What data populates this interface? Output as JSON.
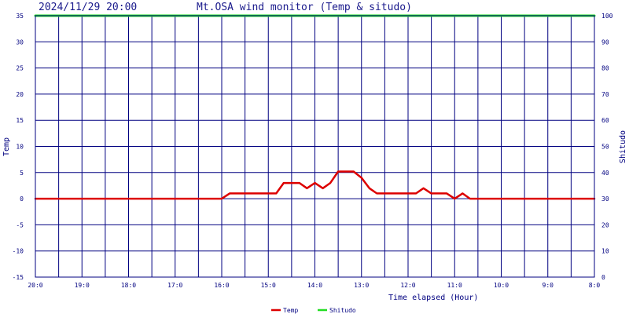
{
  "header": {
    "datetime": "2024/11/29 20:00",
    "title": "Mt.OSA wind monitor (Temp & situdo)"
  },
  "chart_data": {
    "type": "line",
    "title": "Mt.OSA wind monitor (Temp & situdo)",
    "xlabel": "Time elapsed (Hour)",
    "ylabel": "Temp",
    "y2label": "Shitudo",
    "xlim": [
      0,
      12
    ],
    "ylim": [
      -15,
      35
    ],
    "y2lim": [
      0,
      100
    ],
    "x_ticks": [
      {
        "x": 0,
        "label": "20:0"
      },
      {
        "x": 1,
        "label": "19:0"
      },
      {
        "x": 2,
        "label": "18:0"
      },
      {
        "x": 3,
        "label": "17:0"
      },
      {
        "x": 4,
        "label": "16:0"
      },
      {
        "x": 5,
        "label": "15:0"
      },
      {
        "x": 6,
        "label": "14:0"
      },
      {
        "x": 7,
        "label": "13:0"
      },
      {
        "x": 8,
        "label": "12:0"
      },
      {
        "x": 9,
        "label": "11:0"
      },
      {
        "x": 10,
        "label": "10:0"
      },
      {
        "x": 11,
        "label": "9:0"
      },
      {
        "x": 12,
        "label": "8:0"
      }
    ],
    "y_ticks": [
      "35",
      "30",
      "25",
      "20",
      "15",
      "10",
      "5",
      "0",
      "-5",
      "-10",
      "-15"
    ],
    "y2_ticks": [
      "100",
      "90",
      "80",
      "70",
      "60",
      "50",
      "40",
      "30",
      "20",
      "10",
      "0"
    ],
    "grid": true,
    "legend_position": "bottom-center",
    "series": [
      {
        "name": "Temp",
        "axis": "left",
        "color": "#dd0000",
        "points": [
          [
            0,
            0
          ],
          [
            4,
            0
          ],
          [
            4.17,
            1
          ],
          [
            5.17,
            1
          ],
          [
            5.33,
            3
          ],
          [
            5.67,
            3
          ],
          [
            5.83,
            2
          ],
          [
            6.0,
            3
          ],
          [
            6.17,
            2
          ],
          [
            6.33,
            3
          ],
          [
            6.5,
            5.2
          ],
          [
            6.83,
            5.2
          ],
          [
            7.0,
            4
          ],
          [
            7.17,
            2
          ],
          [
            7.33,
            1
          ],
          [
            8.17,
            1
          ],
          [
            8.33,
            2
          ],
          [
            8.5,
            1
          ],
          [
            8.83,
            1
          ],
          [
            9.0,
            0
          ],
          [
            9.17,
            1
          ],
          [
            9.33,
            0
          ],
          [
            12,
            0
          ]
        ]
      },
      {
        "name": "Shitudo",
        "axis": "right",
        "color": "#22dd22",
        "points": [
          [
            0,
            100
          ],
          [
            12,
            100
          ]
        ]
      }
    ]
  }
}
